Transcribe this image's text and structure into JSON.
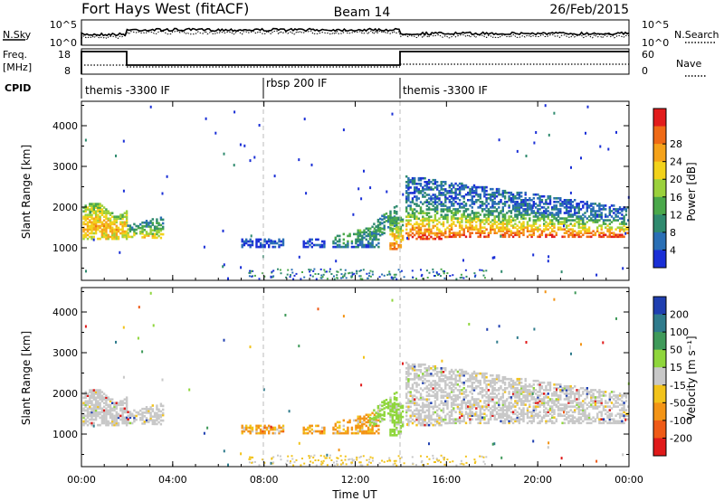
{
  "header": {
    "station": "Fort Hays West (fitACF)",
    "beam": "Beam 14",
    "date": "26/Feb/2015"
  },
  "noise": {
    "left_label": "N.Sky",
    "right_label": "N.Search",
    "ticks_left": [
      "10^5",
      "10^0"
    ],
    "ticks_right": [
      "10^5",
      "10^0"
    ]
  },
  "freq": {
    "left_label_1": "Freq.",
    "left_label_2": "[MHz]",
    "right_label": "Nave",
    "ticks_left": [
      "18",
      "8"
    ],
    "ticks_right": [
      "60",
      "0"
    ]
  },
  "cpid": {
    "label": "CPID",
    "segments": [
      {
        "label": "themis -3300 IF",
        "start_h": 0,
        "end_h": 8
      },
      {
        "label": "rbsp 200 IF",
        "start_h": 8,
        "end_h": 14
      },
      {
        "label": "themis -3300 IF",
        "start_h": 14,
        "end_h": 24
      }
    ]
  },
  "axes": {
    "x_label": "Time UT",
    "x_ticks": [
      "00:00",
      "04:00",
      "08:00",
      "12:00",
      "16:00",
      "20:00",
      "00:00"
    ],
    "y_label": "Slant Range [km]",
    "y_ticks": [
      "1000",
      "2000",
      "3000",
      "4000"
    ]
  },
  "colorbars": {
    "power": {
      "label": "Power [dB]",
      "ticks": [
        "4",
        "8",
        "12",
        "16",
        "20",
        "24",
        "28"
      ],
      "colors": [
        "#1a2fd6",
        "#2a6fb5",
        "#2f8a6e",
        "#4aa84a",
        "#9bd13c",
        "#f2d21b",
        "#f5a21a",
        "#ef6a16",
        "#e21c1c"
      ]
    },
    "velocity": {
      "label": "Velocity [m s⁻¹]",
      "ticks": [
        "200",
        "100",
        "50",
        "15",
        "-15",
        "-50",
        "-100",
        "-200"
      ],
      "colors": [
        "#1f3fb0",
        "#2f7b8c",
        "#3f9a5a",
        "#8fd63c",
        "#c8c8c8",
        "#f2c31b",
        "#f39416",
        "#ef5a16",
        "#e01a1a"
      ]
    }
  },
  "chart_data": [
    {
      "type": "heatmap",
      "title": "Fort Hays West (fitACF) Beam 14 26/Feb/2015",
      "quantity": "Power [dB]",
      "xlabel": "Time UT",
      "ylabel": "Slant Range [km]",
      "xlim": [
        "00:00",
        "24:00"
      ],
      "ylim": [
        200,
        4600
      ],
      "colorbar_range": [
        0,
        30
      ],
      "regions": [
        {
          "t_start_h": 0.0,
          "t_end_h": 2.0,
          "range_km": [
            1200,
            2200
          ],
          "power_db": "4-24"
        },
        {
          "t_start_h": 2.0,
          "t_end_h": 3.5,
          "range_km": [
            1250,
            1600
          ],
          "power_db": "4-20"
        },
        {
          "t_start_h": 7.0,
          "t_end_h": 10.8,
          "range_km": [
            1050,
            1250
          ],
          "power_db": "4-8"
        },
        {
          "t_start_h": 11.0,
          "t_end_h": 13.5,
          "range_km": [
            1050,
            1700
          ],
          "power_db": "4-16"
        },
        {
          "t_start_h": 13.5,
          "t_end_h": 14.0,
          "range_km": [
            1000,
            1900
          ],
          "power_db": "4-24"
        },
        {
          "t_start_h": 14.2,
          "t_end_h": 24.0,
          "range_km": [
            1200,
            2800
          ],
          "power_db": "4-28"
        }
      ]
    },
    {
      "type": "heatmap",
      "title": "Fort Hays West (fitACF) Beam 14 26/Feb/2015",
      "quantity": "Velocity [m s⁻¹]",
      "xlabel": "Time UT",
      "ylabel": "Slant Range [km]",
      "xlim": [
        "00:00",
        "24:00"
      ],
      "ylim": [
        200,
        4600
      ],
      "colorbar_range": [
        -200,
        200
      ],
      "regions": [
        {
          "t_start_h": 0.0,
          "t_end_h": 3.5,
          "range_km": [
            1200,
            2600
          ],
          "velocity": "mostly -15 to 15 (grey)"
        },
        {
          "t_start_h": 7.0,
          "t_end_h": 10.8,
          "range_km": [
            1000,
            1200
          ],
          "velocity": "-50 to -15 (orange/yellow)"
        },
        {
          "t_start_h": 11.0,
          "t_end_h": 13.0,
          "range_km": [
            1000,
            1300
          ],
          "velocity": "-50 to -15 (orange/yellow)"
        },
        {
          "t_start_h": 12.5,
          "t_end_h": 14.0,
          "range_km": [
            1200,
            2000
          ],
          "velocity": "15 to 50 (green)"
        },
        {
          "t_start_h": 14.2,
          "t_end_h": 24.0,
          "range_km": [
            1200,
            2900
          ],
          "velocity": "mostly -15 to 15 (grey)"
        }
      ]
    }
  ]
}
